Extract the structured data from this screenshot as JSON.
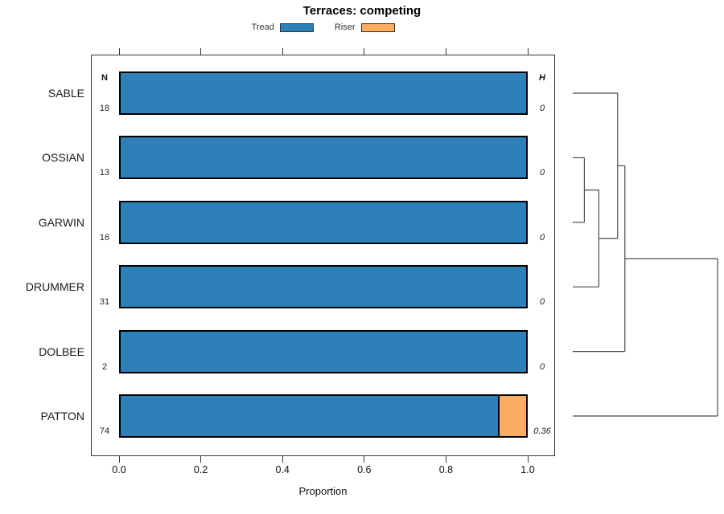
{
  "title": "Terraces: competing",
  "columns": {
    "n_header": "N",
    "h_header": "H"
  },
  "axis": {
    "xlabel": "Proportion",
    "tick_labels": [
      "0.0",
      "0.2",
      "0.4",
      "0.6",
      "0.8",
      "1.0"
    ],
    "tick_values": [
      0,
      0.2,
      0.4,
      0.6,
      0.8,
      1.0
    ],
    "xlim": [
      0,
      1
    ]
  },
  "legend": {
    "items": [
      {
        "label": "Tread",
        "color": "#2D81B8"
      },
      {
        "label": "Riser",
        "color": "#FCAD61"
      }
    ]
  },
  "chart_data": {
    "type": "bar",
    "orientation": "horizontal",
    "stacked": true,
    "title": "Terraces: competing",
    "xlabel": "Proportion",
    "xlim": [
      0,
      1
    ],
    "grid": false,
    "legend_position": "top-center",
    "categories": [
      "SABLE",
      "OSSIAN",
      "GARWIN",
      "DRUMMER",
      "DOLBEE",
      "PATTON"
    ],
    "series": [
      {
        "name": "Tread",
        "color": "#2D81B8",
        "values": [
          1.0,
          1.0,
          1.0,
          1.0,
          1.0,
          0.93
        ]
      },
      {
        "name": "Riser",
        "color": "#FCAD61",
        "values": [
          0.0,
          0.0,
          0.0,
          0.0,
          0.0,
          0.07
        ]
      }
    ],
    "row_annotations": {
      "N": [
        "18",
        "13",
        "16",
        "31",
        "2",
        "74"
      ],
      "H": [
        "0",
        "0",
        "0",
        "0",
        "0",
        "0.36"
      ]
    },
    "dendrogram": {
      "side": "right",
      "line_color": "#4a4a4a",
      "merges": [
        {
          "id": "m1",
          "children": [
            "OSSIAN",
            "GARWIN"
          ],
          "height": 0.08
        },
        {
          "id": "m2",
          "children": [
            "m1",
            "DRUMMER"
          ],
          "height": 0.18
        },
        {
          "id": "m3",
          "children": [
            "SABLE",
            "m2"
          ],
          "height": 0.31
        },
        {
          "id": "m4",
          "children": [
            "m3",
            "DOLBEE"
          ],
          "height": 0.36
        },
        {
          "id": "m5",
          "children": [
            "m4",
            "PATTON"
          ],
          "height": 1.0
        }
      ]
    }
  }
}
